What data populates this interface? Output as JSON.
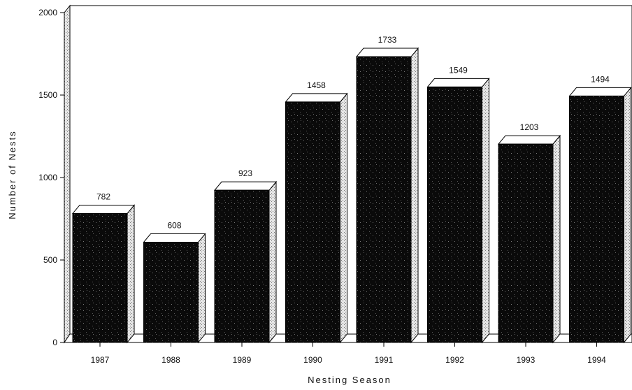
{
  "chart_data": {
    "type": "bar",
    "title": "",
    "xlabel": "Nesting Season",
    "ylabel": "Number of Nests",
    "categories": [
      "1987",
      "1988",
      "1989",
      "1990",
      "1991",
      "1992",
      "1993",
      "1994"
    ],
    "values": [
      782,
      608,
      923,
      1458,
      1733,
      1549,
      1203,
      1494
    ],
    "yticks": [
      "0",
      "500",
      "1000",
      "1500",
      "2000"
    ],
    "ylim": [
      0,
      2000
    ],
    "grid": false,
    "legend": "none",
    "style": "3d",
    "colors": {
      "bar_front": "#0a0a0a",
      "bar_side": "#d8d8d8",
      "bar_top": "#ffffff",
      "axis": "#000000"
    }
  }
}
